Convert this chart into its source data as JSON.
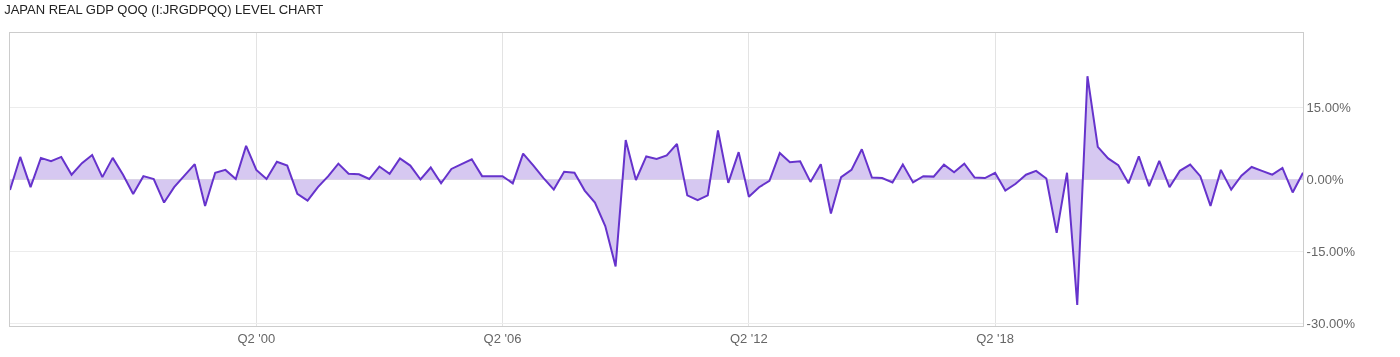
{
  "chart_data": {
    "type": "area",
    "title": "JAPAN REAL GDP QOQ (I:JRGDPQQ) LEVEL CHART",
    "x": [
      "1994-04",
      "1994-07",
      "1994-10",
      "1995-01",
      "1995-04",
      "1995-07",
      "1995-10",
      "1996-01",
      "1996-04",
      "1996-07",
      "1996-10",
      "1997-01",
      "1997-04",
      "1997-07",
      "1997-10",
      "1998-01",
      "1998-04",
      "1998-07",
      "1998-10",
      "1999-01",
      "1999-04",
      "1999-07",
      "1999-10",
      "2000-01",
      "2000-04",
      "2000-07",
      "2000-10",
      "2001-01",
      "2001-04",
      "2001-07",
      "2001-10",
      "2002-01",
      "2002-04",
      "2002-07",
      "2002-10",
      "2003-01",
      "2003-04",
      "2003-07",
      "2003-10",
      "2004-01",
      "2004-04",
      "2004-07",
      "2004-10",
      "2005-01",
      "2005-04",
      "2005-07",
      "2005-10",
      "2006-01",
      "2006-04",
      "2006-07",
      "2006-10",
      "2007-01",
      "2007-04",
      "2007-07",
      "2007-10",
      "2008-01",
      "2008-04",
      "2008-07",
      "2008-10",
      "2009-01",
      "2009-04",
      "2009-07",
      "2009-10",
      "2010-01",
      "2010-04",
      "2010-07",
      "2010-10",
      "2011-01",
      "2011-04",
      "2011-07",
      "2011-10",
      "2012-01",
      "2012-04",
      "2012-07",
      "2012-10",
      "2013-01",
      "2013-04",
      "2013-07",
      "2013-10",
      "2014-01",
      "2014-04",
      "2014-07",
      "2014-10",
      "2015-01",
      "2015-04",
      "2015-07",
      "2015-10",
      "2016-01",
      "2016-04",
      "2016-07",
      "2016-10",
      "2017-01",
      "2017-04",
      "2017-07",
      "2017-10",
      "2018-01",
      "2018-04",
      "2018-07",
      "2018-10",
      "2019-01",
      "2019-04",
      "2019-07",
      "2019-10",
      "2020-01",
      "2020-04",
      "2020-07",
      "2020-10",
      "2021-01",
      "2021-04",
      "2021-07",
      "2021-10",
      "2022-01",
      "2022-04",
      "2022-07",
      "2022-10",
      "2023-01",
      "2023-04",
      "2023-07",
      "2023-10",
      "2024-01",
      "2024-04",
      "2024-07",
      "2024-10",
      "2025-01",
      "2025-04",
      "2025-07",
      "2025-10"
    ],
    "series": [
      {
        "color": "#6633cc",
        "values": [
          -2.2,
          4.7,
          -1.6,
          4.5,
          3.8,
          4.7,
          1.0,
          3.4,
          5.1,
          0.5,
          4.5,
          1.0,
          -3.0,
          0.7,
          0.1,
          -4.8,
          -1.6,
          0.8,
          3.2,
          -5.5,
          1.4,
          2.0,
          0.1,
          7.0,
          2.0,
          0.1,
          3.7,
          2.9,
          -3.0,
          -4.4,
          -1.6,
          0.7,
          3.3,
          1.2,
          1.1,
          0.1,
          2.7,
          1.2,
          4.4,
          2.9,
          0.0,
          2.5,
          -0.8,
          2.2,
          3.2,
          4.2,
          0.7,
          0.7,
          0.7,
          -0.8,
          5.4,
          2.9,
          0.3,
          -2.1,
          1.6,
          1.4,
          -2.3,
          -4.8,
          -9.7,
          -18.1,
          8.2,
          -0.1,
          4.8,
          4.3,
          5.0,
          7.4,
          -3.3,
          -4.3,
          -3.3,
          10.2,
          -0.7,
          5.7,
          -3.6,
          -1.6,
          -0.3,
          5.5,
          3.6,
          3.8,
          -0.5,
          3.2,
          -7.1,
          0.5,
          2.0,
          6.3,
          0.4,
          0.3,
          -0.6,
          3.1,
          -0.6,
          0.7,
          0.6,
          3.1,
          1.5,
          3.3,
          0.4,
          0.3,
          1.4,
          -2.3,
          -0.9,
          1.0,
          1.8,
          0.2,
          -11.1,
          1.4,
          -26.1,
          21.5,
          6.8,
          4.4,
          3.0,
          -0.8,
          4.8,
          -1.4,
          3.9,
          -1.6,
          1.8,
          3.1,
          0.7,
          -5.5,
          2.0,
          -2.1,
          0.8,
          2.6,
          1.8,
          1.0,
          2.4,
          -2.7,
          1.4
        ]
      }
    ],
    "xlim": [
      "1994-04",
      "2025-10"
    ],
    "xticks": [
      {
        "value": "2000-04",
        "label": "Q2 '00"
      },
      {
        "value": "2006-04",
        "label": "Q2 '06"
      },
      {
        "value": "2012-04",
        "label": "Q2 '12"
      },
      {
        "value": "2018-04",
        "label": "Q2 '18"
      }
    ],
    "ylim": [
      -30.5,
      30.5
    ],
    "yticks": [
      {
        "value": -30,
        "label": "-30.00%"
      },
      {
        "value": -15,
        "label": "-15.00%"
      },
      {
        "value": 0,
        "label": "0.00%"
      },
      {
        "value": 15,
        "label": "15.00%"
      }
    ],
    "grid": true,
    "marker": "none",
    "line_style": "solid"
  }
}
